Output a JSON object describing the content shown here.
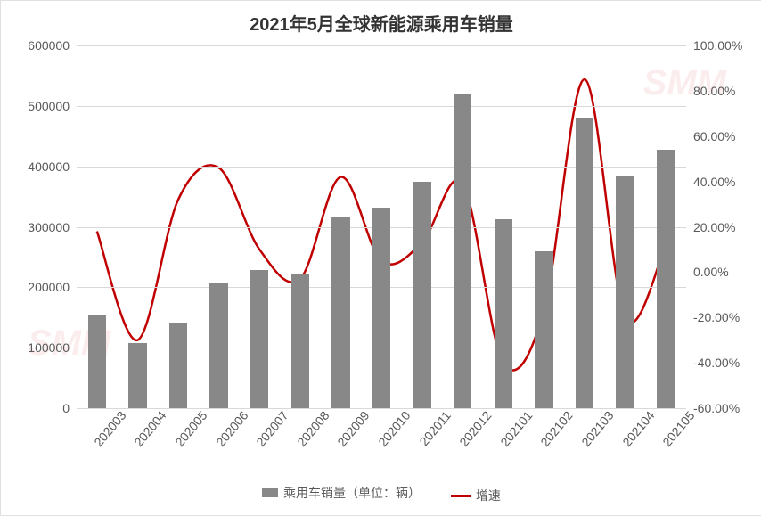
{
  "title": "2021年5月全球新能源乘用车销量",
  "title_fontsize": 20,
  "axis_fontsize": 14,
  "legend_fontsize": 14,
  "chart": {
    "type": "bar+line",
    "categories": [
      "202003",
      "202004",
      "202005",
      "202006",
      "202007",
      "202008",
      "202009",
      "202010",
      "202011",
      "202012",
      "202101",
      "202102",
      "202103",
      "202104",
      "202105"
    ],
    "bar_series": {
      "name": "乘用车销量（单位：辆）",
      "values": [
        155000,
        108000,
        142000,
        207000,
        228000,
        222000,
        317000,
        332000,
        375000,
        520000,
        312000,
        260000,
        480000,
        383000,
        428000
      ],
      "color": "#888888",
      "bar_width_ratio": 0.45
    },
    "line_series": {
      "name": "增速",
      "values": [
        18,
        -30,
        32,
        46,
        10,
        -3,
        42,
        5,
        13,
        39,
        -40,
        -17,
        85,
        -20,
        12
      ],
      "color": "#c00000",
      "width": 2.5,
      "smooth": true
    },
    "y_left": {
      "min": 0,
      "max": 600000,
      "step": 100000,
      "ticks": [
        "0",
        "100000",
        "200000",
        "300000",
        "400000",
        "500000",
        "600000"
      ]
    },
    "y_right": {
      "min": -60,
      "max": 100,
      "step": 20,
      "ticks": [
        "-60.00%",
        "-40.00%",
        "-20.00%",
        "0.00%",
        "20.00%",
        "40.00%",
        "60.00%",
        "80.00%",
        "100.00%"
      ]
    },
    "grid_color": "#d9d9d9",
    "background": "#ffffff"
  },
  "watermark": "SMM"
}
